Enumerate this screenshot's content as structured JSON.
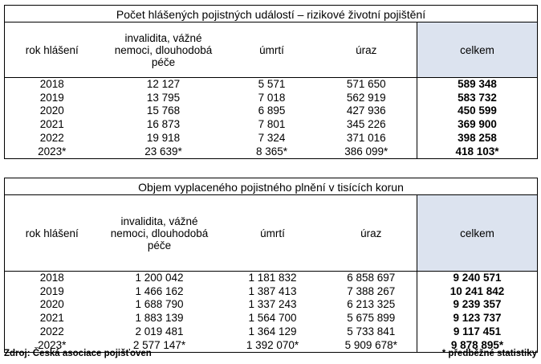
{
  "table1": {
    "title": "Počet hlášených pojistných událostí – rizikové životní pojištění",
    "headers": [
      "rok hlášení",
      "invalidita, vážné nemoci, dlouhodobá péče",
      "úmrtí",
      "úraz",
      "celkem"
    ],
    "rows": [
      [
        "2018",
        "12 127",
        "5 571",
        "571 650",
        "589 348"
      ],
      [
        "2019",
        "13 795",
        "7 018",
        "562 919",
        "583 732"
      ],
      [
        "2020",
        "15 768",
        "6 895",
        "427 936",
        "450 599"
      ],
      [
        "2021",
        "16 873",
        "7 801",
        "345 226",
        "369 900"
      ],
      [
        "2022",
        "19 918",
        "7 324",
        "371 016",
        "398 258"
      ],
      [
        "2023*",
        "23 639*",
        "8 365*",
        "386 099*",
        "418 103*"
      ]
    ]
  },
  "table2": {
    "title": "Objem vyplaceného pojistného plnění v tisících korun",
    "headers": [
      "rok hlášení",
      "invalidita, vážné nemoci, dlouhodobá péče",
      "úmrtí",
      "úraz",
      "celkem"
    ],
    "rows": [
      [
        "2018",
        "1 200 042",
        "1 181 832",
        "6 858 697",
        "9 240 571"
      ],
      [
        "2019",
        "1 466 162",
        "1 387 413",
        "7 388 267",
        "10 241 842"
      ],
      [
        "2020",
        "1 688 790",
        "1 337 243",
        "6 213 325",
        "9 239 357"
      ],
      [
        "2021",
        "1 883 139",
        "1 564 700",
        "5 675 899",
        "9 123 737"
      ],
      [
        "2022",
        "2 019 481",
        "1 364 129",
        "5 733 841",
        "9 117 451"
      ],
      [
        "2023*",
        "2 577 147*",
        "1 392 070*",
        "5 909 678*",
        "9 878 895*"
      ]
    ]
  },
  "footer": {
    "source": "Zdroj: Česká asociace pojišťoven",
    "note": "* předběžné statistiky"
  },
  "colors": {
    "total_header_bg": "#dce3ef"
  }
}
